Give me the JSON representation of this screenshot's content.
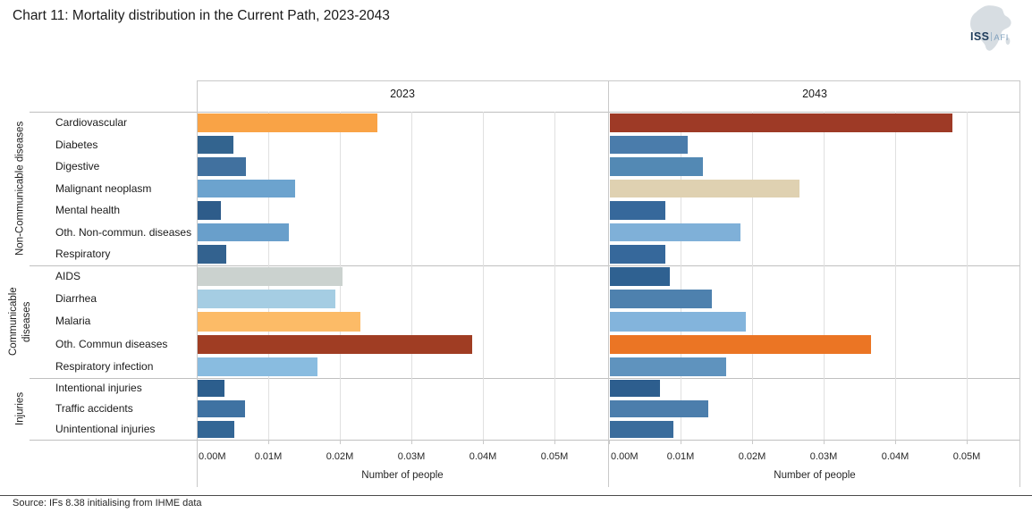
{
  "title": "Chart 11: Mortality distribution in the Current Path, 2023-2043",
  "source": "Source: IFs 8.38 initialising from IHME data",
  "logo": {
    "iss": "ISS",
    "afi": "AFI"
  },
  "chart_data": {
    "type": "bar",
    "orientation": "horizontal",
    "xlabel": "Number of people",
    "x_tick_labels": [
      "0.00M",
      "0.01M",
      "0.02M",
      "0.03M",
      "0.04M",
      "0.05M"
    ],
    "x_tick_values": [
      0,
      0.01,
      0.02,
      0.03,
      0.04,
      0.05
    ],
    "xlim": [
      0,
      0.0575
    ],
    "unit": "million people",
    "grid": true,
    "legend_position": "none",
    "groups": [
      {
        "label": "Non-Communicable diseases",
        "count": 7
      },
      {
        "label": "Communicable\ndiseases",
        "count": 5
      },
      {
        "label": "Injuries",
        "count": 3
      }
    ],
    "categories": [
      "Cardiovascular",
      "Diabetes",
      "Digestive",
      "Malignant neoplasm",
      "Mental health",
      "Oth. Non-commun. diseases",
      "Respiratory",
      "AIDS",
      "Diarrhea",
      "Malaria",
      "Oth. Commun diseases",
      "Respiratory infection",
      "Intentional injuries",
      "Traffic accidents",
      "Unintentional injuries"
    ],
    "series": [
      {
        "name": "2023",
        "values": [
          0.0251,
          0.005,
          0.0068,
          0.0136,
          0.0033,
          0.0128,
          0.004,
          0.0203,
          0.0193,
          0.0228,
          0.0384,
          0.0167,
          0.0038,
          0.0066,
          0.0051
        ],
        "colors": [
          "#F9A346",
          "#33648F",
          "#41719F",
          "#6CA3CE",
          "#2E5C8A",
          "#699FCB",
          "#33628F",
          "#CBD2CF",
          "#A5CDE3",
          "#FCBB67",
          "#A03D23",
          "#89BCE0",
          "#2C5E8D",
          "#3F72A2",
          "#336695"
        ]
      },
      {
        "name": "2043",
        "values": [
          0.0479,
          0.0109,
          0.013,
          0.0265,
          0.0078,
          0.0183,
          0.0078,
          0.0084,
          0.0142,
          0.019,
          0.0365,
          0.0162,
          0.007,
          0.0137,
          0.0089
        ],
        "colors": [
          "#9E3A26",
          "#4A7CAB",
          "#5389B4",
          "#DFD1B1",
          "#36689B",
          "#7FB0D8",
          "#36689B",
          "#2F6191",
          "#4E81AE",
          "#83B4DC",
          "#EB7524",
          "#5F93BE",
          "#2D5E8E",
          "#4C7EAC",
          "#3A6C9C"
        ]
      }
    ]
  }
}
